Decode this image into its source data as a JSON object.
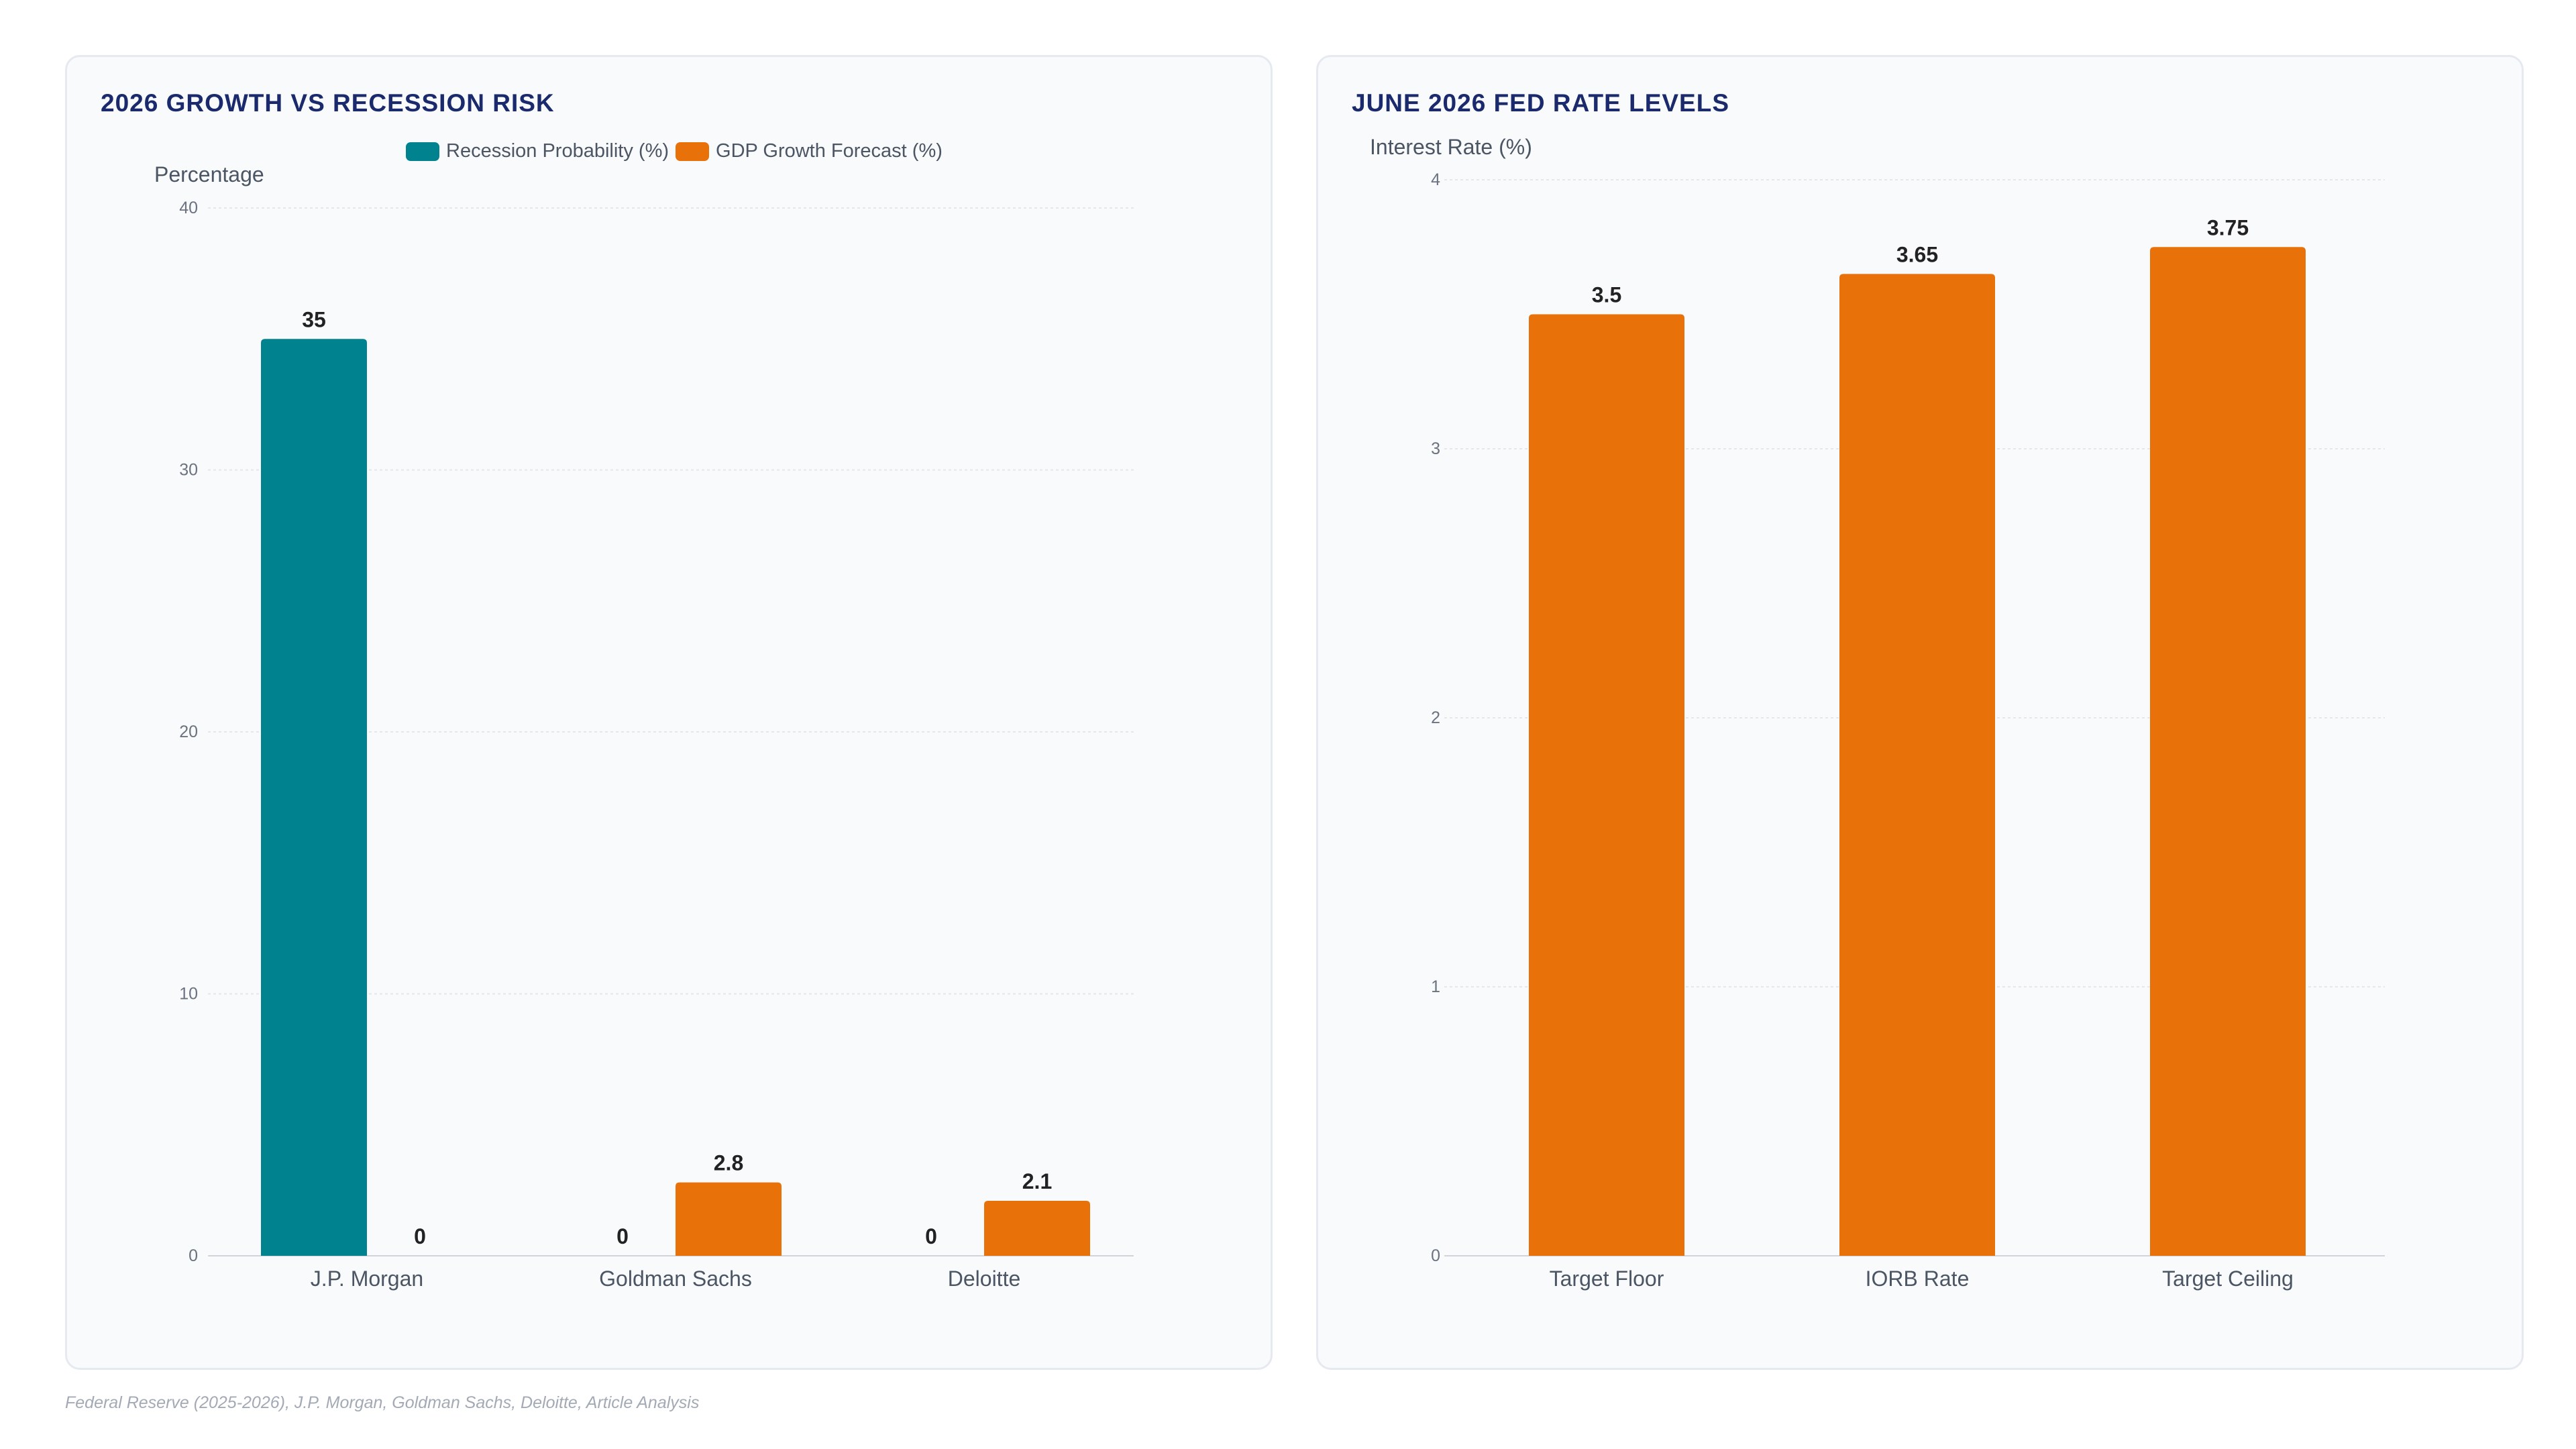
{
  "charts": [
    {
      "title": "2026 GROWTH VS RECESSION RISK",
      "legend": [
        "Recession Probability (%)",
        "GDP Growth Forecast (%)"
      ]
    },
    {
      "title": "JUNE 2026 FED RATE LEVELS"
    }
  ],
  "source_note": "Federal Reserve (2025-2026), J.P. Morgan, Goldman Sachs, Deloitte, Article Analysis",
  "colors": {
    "teal": "#00838f",
    "orange": "#e8710a",
    "title": "#1a2a6c",
    "grid": "#e5e7eb"
  },
  "chart_data": [
    {
      "type": "bar",
      "title": "2026 GROWTH VS RECESSION RISK",
      "ylabel": "Percentage",
      "xlabel": "",
      "categories": [
        "J.P. Morgan",
        "Goldman Sachs",
        "Deloitte"
      ],
      "series": [
        {
          "name": "Recession Probability (%)",
          "values": [
            35,
            0,
            0
          ],
          "color": "#00838f"
        },
        {
          "name": "GDP Growth Forecast (%)",
          "values": [
            0,
            2.8,
            2.1
          ],
          "color": "#e8710a"
        }
      ],
      "ylim": [
        0,
        40
      ],
      "yticks": [
        0,
        10,
        20,
        30,
        40
      ],
      "grid": true,
      "legend_position": "top"
    },
    {
      "type": "bar",
      "title": "JUNE 2026 FED RATE LEVELS",
      "ylabel": "Interest Rate (%)",
      "xlabel": "",
      "categories": [
        "Target Floor",
        "IORB Rate",
        "Target Ceiling"
      ],
      "series": [
        {
          "values": [
            3.5,
            3.65,
            3.75
          ],
          "color": "#e8710a"
        }
      ],
      "ylim": [
        0,
        4
      ],
      "yticks": [
        0,
        1,
        2,
        3,
        4
      ],
      "grid": true
    }
  ]
}
